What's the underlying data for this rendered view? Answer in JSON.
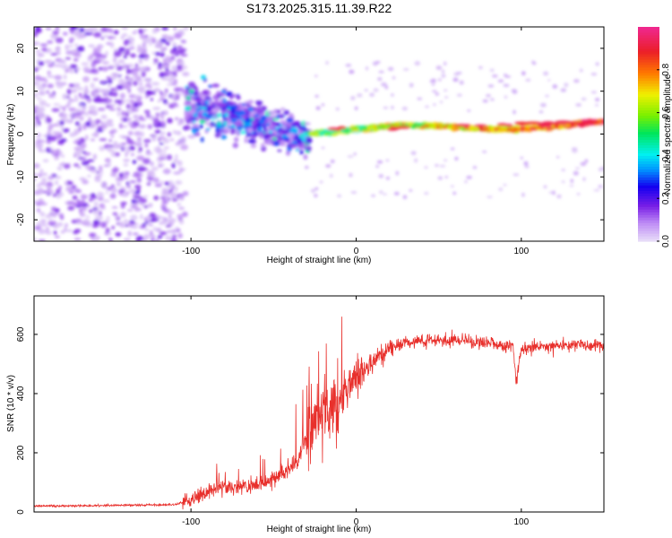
{
  "title": "S173.2025.315.11.39.R22",
  "chart_data": [
    {
      "type": "heatmap",
      "title": "S173.2025.315.11.39.R22",
      "xlabel": "Height of straight line (km)",
      "ylabel": "Frequency (Hz)",
      "xlim": [
        -195,
        150
      ],
      "ylim": [
        -25,
        25
      ],
      "xticks": [
        -100,
        0,
        100
      ],
      "yticks": [
        -20,
        -10,
        0,
        10,
        20
      ],
      "colorbar": {
        "label": "Normalized spectral amplitude",
        "range": [
          0,
          1
        ],
        "ticks": [
          0.0,
          0.2,
          0.4,
          0.6,
          0.8
        ]
      },
      "features": [
        {
          "description": "noise",
          "x_range": [
            -195,
            -103
          ],
          "freq_range": [
            -25,
            25
          ],
          "amplitude": 0.1
        },
        {
          "description": "scatter",
          "x_range": [
            -103,
            -28
          ],
          "freq_range": [
            -15,
            10
          ],
          "amplitude": 0.3
        },
        {
          "description": "carrier",
          "x_range": [
            -28,
            150
          ],
          "freq_center": [
            1,
            2
          ],
          "amplitude": 0.9
        }
      ]
    },
    {
      "type": "line",
      "xlabel": "Height of straight line (km)",
      "ylabel": "SNR (10 * v/v)",
      "xlim": [
        -195,
        150
      ],
      "ylim": [
        0,
        730
      ],
      "xticks": [
        -100,
        0,
        100
      ],
      "yticks": [
        0,
        200,
        400,
        600
      ],
      "series": [
        {
          "name": "SNR",
          "color": "#e8302c",
          "x": [
            -195,
            -150,
            -110,
            -100,
            -90,
            -80,
            -70,
            -60,
            -50,
            -40,
            -35,
            -30,
            -25,
            -20,
            -15,
            -10,
            -5,
            0,
            5,
            10,
            15,
            20,
            30,
            40,
            50,
            60,
            70,
            80,
            90,
            95,
            97,
            100,
            110,
            120,
            130,
            140,
            150
          ],
          "values": [
            20,
            22,
            25,
            40,
            70,
            90,
            80,
            90,
            110,
            150,
            180,
            250,
            300,
            320,
            350,
            380,
            420,
            450,
            480,
            510,
            530,
            550,
            570,
            580,
            580,
            585,
            575,
            575,
            560,
            560,
            430,
            555,
            560,
            560,
            565,
            565,
            560
          ]
        }
      ]
    }
  ]
}
